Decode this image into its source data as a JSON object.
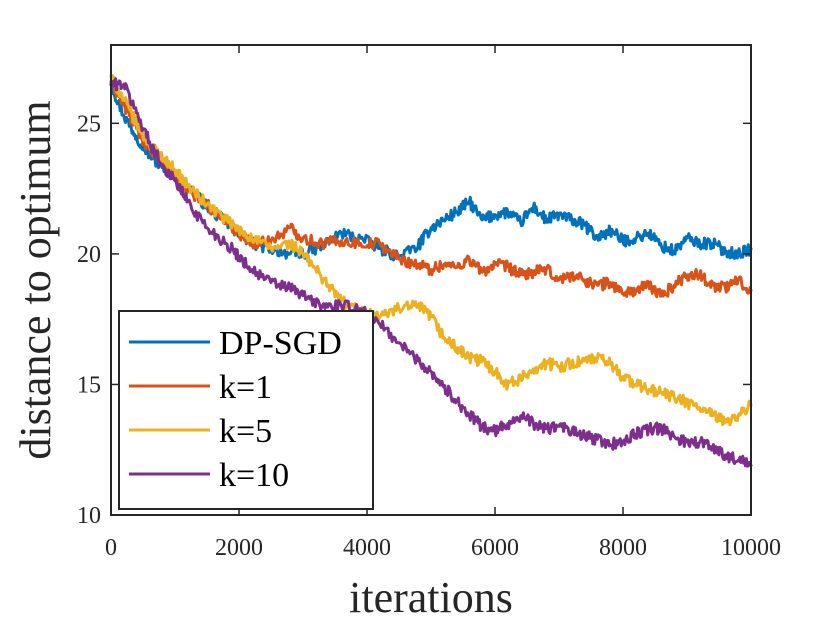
{
  "chart_data": {
    "type": "line",
    "title": "",
    "xlabel": "iterations",
    "ylabel": "distance to optimum",
    "xlim": [
      0,
      10000
    ],
    "ylim": [
      10,
      28
    ],
    "xticks": [
      0,
      2000,
      4000,
      6000,
      8000,
      10000
    ],
    "yticks": [
      10,
      15,
      20,
      25
    ],
    "grid": false,
    "legend_position": "bottom-left",
    "series": [
      {
        "name": "DP-SGD",
        "color": "#0072BD",
        "x": [
          0,
          200,
          400,
          600,
          800,
          1000,
          1200,
          1500,
          1800,
          2000,
          2200,
          2500,
          2800,
          3000,
          3300,
          3600,
          3900,
          4200,
          4500,
          4800,
          5000,
          5200,
          5400,
          5600,
          5800,
          6000,
          6200,
          6400,
          6600,
          6800,
          7000,
          7200,
          7400,
          7600,
          7800,
          8000,
          8200,
          8400,
          8600,
          8800,
          9000,
          9200,
          9400,
          9600,
          9800,
          10000
        ],
        "y": [
          26.5,
          25.3,
          24.5,
          23.8,
          23.3,
          23.0,
          22.6,
          21.8,
          21.2,
          20.8,
          20.4,
          20.2,
          20.0,
          20.0,
          20.3,
          20.8,
          20.6,
          20.2,
          19.9,
          20.3,
          21.0,
          21.3,
          21.6,
          22.0,
          21.3,
          21.5,
          21.6,
          21.2,
          21.8,
          21.3,
          21.5,
          21.3,
          21.1,
          20.6,
          20.9,
          20.5,
          20.6,
          20.8,
          20.3,
          20.1,
          20.6,
          20.4,
          20.4,
          20.1,
          20.0,
          20.2
        ]
      },
      {
        "name": "k=1",
        "color": "#D95319",
        "x": [
          0,
          200,
          400,
          600,
          800,
          1000,
          1200,
          1500,
          1800,
          2000,
          2200,
          2500,
          2800,
          3000,
          3300,
          3600,
          3900,
          4200,
          4500,
          4800,
          5000,
          5200,
          5400,
          5600,
          5800,
          6000,
          6200,
          6400,
          6600,
          6800,
          7000,
          7200,
          7400,
          7600,
          7800,
          8000,
          8200,
          8400,
          8600,
          8800,
          9000,
          9200,
          9400,
          9600,
          9800,
          10000
        ],
        "y": [
          26.6,
          25.7,
          24.8,
          24.0,
          23.5,
          23.0,
          22.4,
          21.9,
          21.2,
          20.8,
          20.4,
          20.5,
          21.0,
          20.6,
          20.4,
          20.5,
          20.4,
          20.4,
          19.8,
          19.6,
          19.4,
          19.6,
          19.5,
          19.8,
          19.3,
          19.6,
          19.5,
          19.2,
          19.3,
          19.4,
          19.0,
          19.2,
          19.0,
          18.8,
          18.9,
          18.5,
          18.6,
          18.8,
          18.4,
          18.8,
          19.2,
          19.2,
          18.8,
          18.7,
          19.0,
          18.6
        ]
      },
      {
        "name": "k=5",
        "color": "#EDB120",
        "x": [
          0,
          200,
          400,
          600,
          800,
          1000,
          1200,
          1500,
          1800,
          2000,
          2200,
          2500,
          2800,
          3000,
          3200,
          3400,
          3600,
          3900,
          4200,
          4500,
          4800,
          5000,
          5200,
          5400,
          5600,
          5800,
          6000,
          6200,
          6400,
          6600,
          6800,
          7000,
          7200,
          7400,
          7600,
          7800,
          8000,
          8200,
          8400,
          8600,
          8800,
          9000,
          9200,
          9400,
          9600,
          9800,
          10000
        ],
        "y": [
          26.8,
          25.9,
          25.0,
          24.2,
          23.7,
          23.2,
          22.6,
          21.9,
          21.3,
          20.9,
          20.6,
          20.2,
          20.4,
          20.0,
          19.4,
          18.8,
          18.2,
          17.8,
          17.6,
          17.9,
          18.0,
          17.6,
          16.8,
          16.4,
          16.0,
          15.9,
          15.5,
          15.0,
          15.2,
          15.6,
          15.8,
          15.7,
          15.8,
          15.9,
          16.0,
          15.8,
          15.3,
          15.0,
          14.8,
          14.7,
          14.5,
          14.3,
          14.1,
          13.8,
          13.6,
          13.8,
          14.2
        ]
      },
      {
        "name": "k=10",
        "color": "#7E2F8E",
        "x": [
          0,
          200,
          400,
          600,
          800,
          1000,
          1200,
          1500,
          1800,
          2000,
          2200,
          2500,
          2800,
          3000,
          3300,
          3600,
          3900,
          4200,
          4500,
          4800,
          5000,
          5200,
          5400,
          5600,
          5800,
          6000,
          6200,
          6400,
          6600,
          6800,
          7000,
          7200,
          7400,
          7600,
          7800,
          8000,
          8200,
          8400,
          8600,
          8800,
          9000,
          9200,
          9400,
          9600,
          9800,
          10000
        ],
        "y": [
          26.5,
          26.5,
          25.4,
          24.3,
          23.4,
          22.8,
          22.0,
          21.0,
          20.4,
          19.9,
          19.4,
          18.9,
          18.7,
          18.4,
          18.0,
          18.0,
          17.9,
          17.3,
          16.6,
          15.9,
          15.5,
          14.9,
          14.4,
          13.8,
          13.4,
          13.2,
          13.5,
          13.8,
          13.5,
          13.3,
          13.4,
          13.2,
          13.0,
          12.9,
          12.7,
          12.8,
          13.1,
          13.3,
          13.3,
          13.0,
          12.8,
          12.8,
          12.6,
          12.3,
          12.1,
          11.9
        ]
      }
    ]
  }
}
